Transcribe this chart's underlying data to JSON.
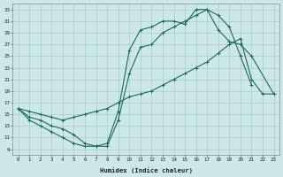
{
  "xlabel": "Humidex (Indice chaleur)",
  "bg_color": "#cce8e8",
  "line_color": "#1a6b5a",
  "xlim": [
    -0.5,
    23.5
  ],
  "ylim": [
    8,
    34
  ],
  "xticks": [
    0,
    1,
    2,
    3,
    4,
    5,
    6,
    7,
    8,
    9,
    10,
    11,
    12,
    13,
    14,
    15,
    16,
    17,
    18,
    19,
    20,
    21,
    22,
    23
  ],
  "yticks": [
    9,
    11,
    13,
    15,
    17,
    19,
    21,
    23,
    25,
    27,
    29,
    31,
    33
  ],
  "grid_color": "#aacccc",
  "line1_x": [
    0,
    1,
    2,
    3,
    4,
    5,
    6,
    7,
    8,
    9,
    10,
    11,
    12,
    13,
    14,
    15,
    16,
    17,
    18,
    19,
    20,
    21
  ],
  "line1_y": [
    16,
    14,
    13,
    12,
    11,
    10,
    9.5,
    9.5,
    10,
    15.5,
    26,
    29.5,
    30,
    31,
    31,
    30.5,
    33,
    33,
    32,
    30,
    25,
    20
  ],
  "line2_x": [
    0,
    1,
    2,
    3,
    4,
    5,
    6,
    7,
    8,
    9,
    10,
    11,
    12,
    13,
    14,
    15,
    16,
    17,
    18,
    19,
    20,
    21,
    23
  ],
  "line2_y": [
    16,
    14.5,
    14,
    13,
    12.5,
    11.5,
    10,
    9.5,
    9.5,
    14,
    22,
    26.5,
    27,
    29,
    30,
    31,
    32,
    33,
    29.5,
    27.5,
    27,
    25,
    18.5
  ],
  "line3_x": [
    0,
    1,
    2,
    3,
    4,
    5,
    6,
    7,
    8,
    9,
    10,
    11,
    12,
    13,
    14,
    15,
    16,
    17,
    18,
    19,
    20,
    21,
    22,
    23
  ],
  "line3_y": [
    16,
    15.5,
    15,
    14.5,
    14,
    14.5,
    15,
    15.5,
    16,
    17,
    18,
    18.5,
    19,
    20,
    21,
    22,
    23,
    24,
    25.5,
    27,
    28,
    21,
    18.5,
    18.5
  ]
}
